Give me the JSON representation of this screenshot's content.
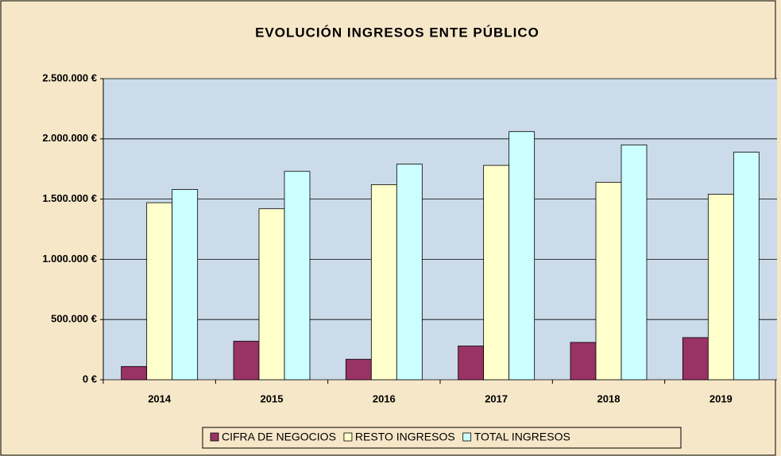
{
  "chart_data": {
    "type": "bar",
    "title": "EVOLUCIÓN INGRESOS ENTE PÚBLICO",
    "categories": [
      "2014",
      "2015",
      "2016",
      "2017",
      "2018",
      "2019"
    ],
    "series": [
      {
        "name": "CIFRA DE NEGOCIOS",
        "color": "#993366",
        "values": [
          110000,
          320000,
          170000,
          280000,
          310000,
          350000
        ]
      },
      {
        "name": "RESTO INGRESOS",
        "color": "#ffffcc",
        "values": [
          1470000,
          1420000,
          1620000,
          1780000,
          1640000,
          1540000
        ]
      },
      {
        "name": "TOTAL INGRESOS",
        "color": "#ccffff",
        "values": [
          1580000,
          1730000,
          1790000,
          2060000,
          1950000,
          1890000
        ]
      }
    ],
    "ylim": [
      0,
      2500000
    ],
    "yticks": [
      {
        "value": 0,
        "label": "0 €"
      },
      {
        "value": 500000,
        "label": "500.000 €"
      },
      {
        "value": 1000000,
        "label": "1.000.000 €"
      },
      {
        "value": 1500000,
        "label": "1.500.000 €"
      },
      {
        "value": 2000000,
        "label": "2.000.000 €"
      },
      {
        "value": 2500000,
        "label": "2.500.000 €"
      }
    ],
    "grid": true,
    "legend": "bottom"
  }
}
